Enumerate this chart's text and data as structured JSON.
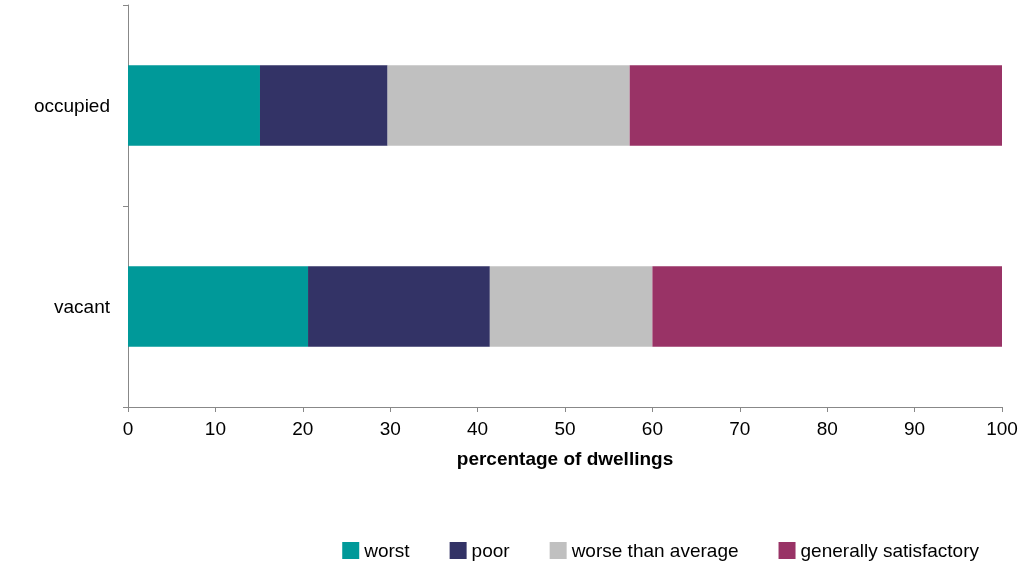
{
  "chart_data": {
    "type": "bar",
    "orientation": "horizontal",
    "stacked": true,
    "xlabel": "percentage of dwellings",
    "categories": [
      "occupied",
      "vacant"
    ],
    "series": [
      {
        "name": "worst",
        "color": "#009999",
        "values": [
          15.1,
          20.6
        ]
      },
      {
        "name": "poor",
        "color": "#333366",
        "values": [
          14.6,
          20.8
        ]
      },
      {
        "name": "worse than average",
        "color": "#c0c0c0",
        "values": [
          27.7,
          18.6
        ]
      },
      {
        "name": "generally satisfactory",
        "color": "#993366",
        "values": [
          42.6,
          40.0
        ]
      }
    ],
    "xlim": [
      0,
      100
    ],
    "xticks": [
      0,
      10,
      20,
      30,
      40,
      50,
      60,
      70,
      80,
      90,
      100
    ],
    "grid": false,
    "legend": "bottom"
  }
}
